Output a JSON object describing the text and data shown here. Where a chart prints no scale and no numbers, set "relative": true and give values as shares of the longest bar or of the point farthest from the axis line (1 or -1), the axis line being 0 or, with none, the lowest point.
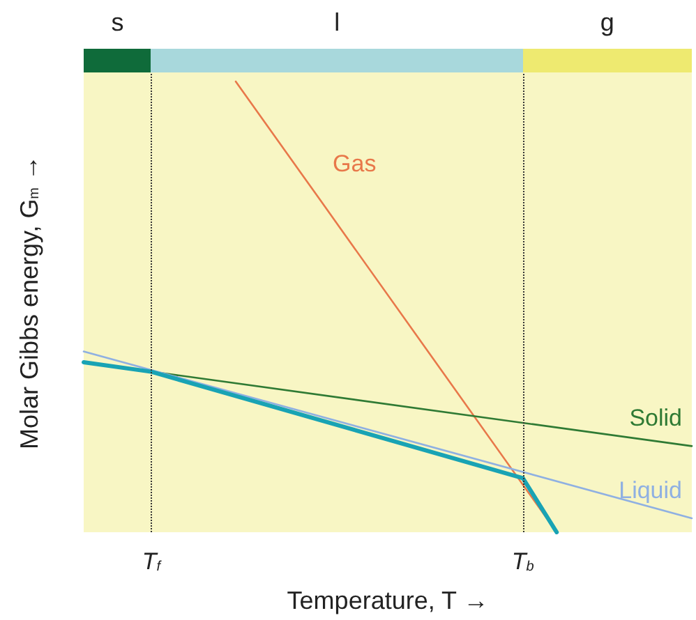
{
  "chart_data": {
    "type": "line",
    "relative": true,
    "xlabel": "Temperature, T →",
    "ylabel": "Molar Gibbs energy, G$_{m}$ →",
    "categories": [
      null,
      null,
      null,
      null,
      "T$_{f}$",
      null,
      null,
      null,
      null,
      null,
      null,
      null,
      null,
      null,
      null,
      null,
      null,
      null,
      null,
      null,
      null,
      null,
      null,
      null,
      null,
      null,
      "T$_{b}$",
      null,
      null,
      null,
      null,
      null,
      null,
      null,
      null,
      null,
      null
    ],
    "series": [
      {
        "name": "Gas",
        "color": "#e8784a",
        "values": [
          null,
          null,
          null,
          null,
          null,
          null,
          null,
          null,
          null,
          1,
          null,
          null,
          null,
          null,
          0.737,
          null,
          null,
          null,
          null,
          null,
          null,
          null,
          null,
          null,
          null,
          null,
          null,
          null,
          0,
          null,
          null,
          null,
          null,
          null,
          null,
          null,
          null
        ]
      },
      {
        "name": "Solid",
        "color": "#2f7a34",
        "values": [
          0.377,
          null,
          null,
          null,
          null,
          null,
          null,
          null,
          null,
          null,
          null,
          null,
          null,
          null,
          null,
          null,
          null,
          null,
          null,
          null,
          null,
          null,
          null,
          null,
          null,
          null,
          null,
          null,
          null,
          null,
          null,
          null,
          null,
          null,
          null,
          null,
          0.191
        ]
      },
      {
        "name": "Liquid",
        "color": "#8fb0e2",
        "values": [
          0.401,
          null,
          null,
          null,
          null,
          null,
          null,
          null,
          null,
          null,
          null,
          null,
          null,
          null,
          null,
          null,
          null,
          null,
          null,
          null,
          null,
          null,
          null,
          null,
          null,
          null,
          null,
          null,
          null,
          null,
          null,
          null,
          null,
          null,
          null,
          null,
          0.031
        ]
      },
      {
        "color": "#19a3b4",
        "values": [
          0.377,
          null,
          null,
          null,
          0.356,
          null,
          null,
          null,
          null,
          null,
          null,
          null,
          null,
          null,
          null,
          null,
          null,
          null,
          null,
          null,
          null,
          null,
          null,
          null,
          null,
          null,
          0.12,
          null,
          0,
          null,
          null,
          null,
          null,
          null,
          null,
          null,
          null
        ]
      }
    ],
    "annotations": [
      "s",
      "l",
      "g"
    ],
    "ref_lines": [
      {
        "axis": "x",
        "value": "T$_{f}$",
        "line_style": "dotted",
        "color": "#333333"
      },
      {
        "axis": "x",
        "value": "T$_{b}$",
        "line_style": "dotted",
        "color": "#333333"
      }
    ]
  }
}
